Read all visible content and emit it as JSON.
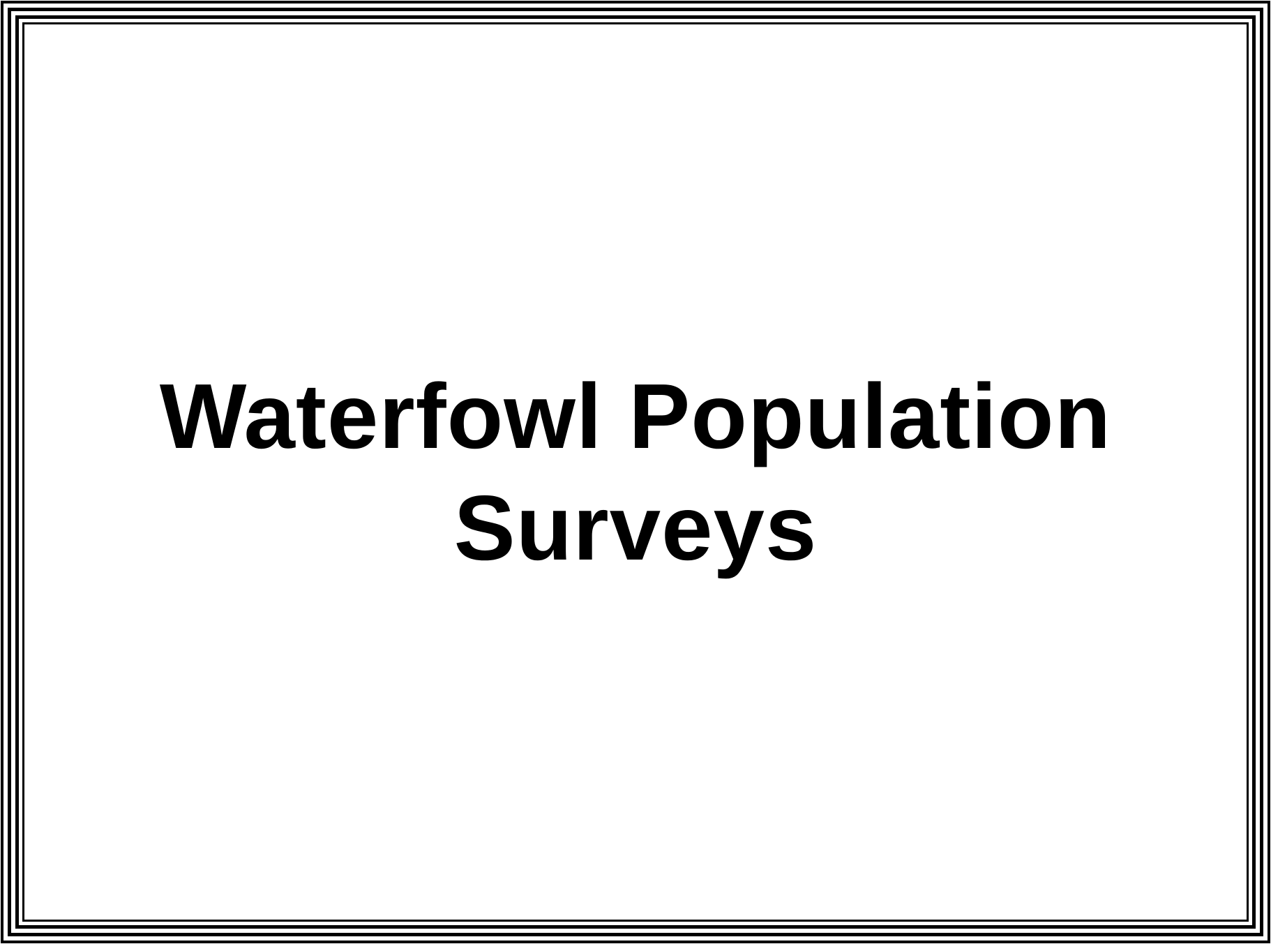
{
  "slide": {
    "title_line_1": "Waterfowl Population",
    "title_line_2": "Surveys"
  },
  "colors": {
    "background": "#ffffff",
    "border": "#000000",
    "text": "#000000"
  }
}
